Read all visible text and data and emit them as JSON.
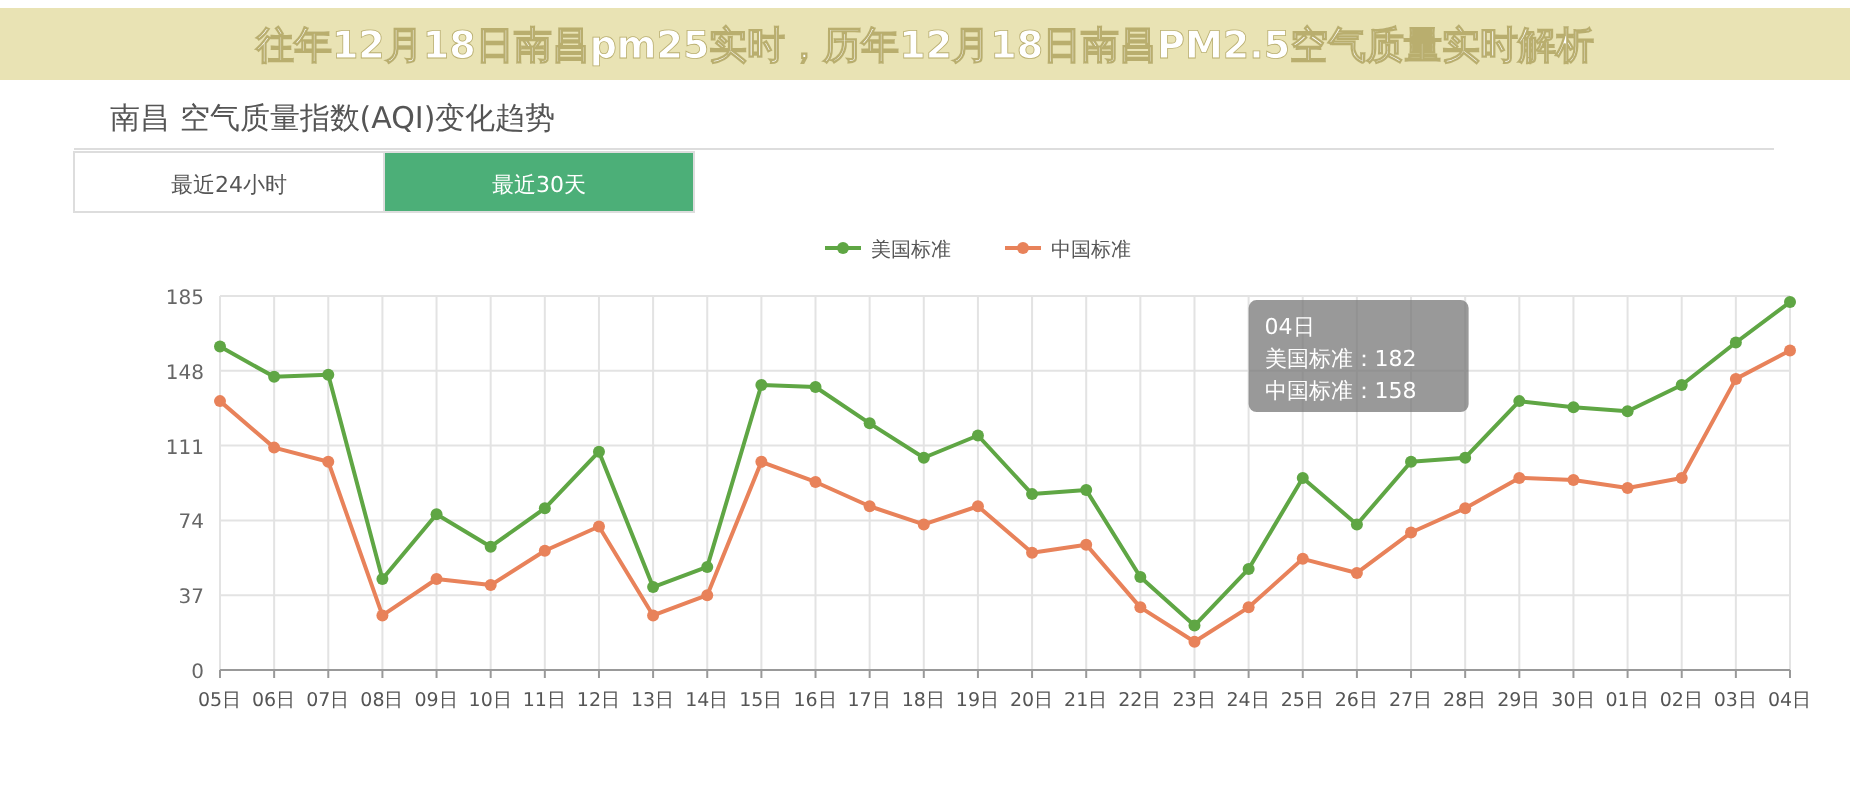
{
  "chart_data": {
    "type": "line",
    "title": "往年12月18日南昌pm25实时，历年12月18日南昌PM2.5空气质量实时解析",
    "subtitle": "南昌 空气质量指数(AQI)变化趋势",
    "annotations": [
      "最近24小时",
      "最近30天",
      "04日",
      "美国标准：182",
      "中国标准：158"
    ],
    "categories": [
      "05日",
      "06日",
      "07日",
      "08日",
      "09日",
      "10日",
      "11日",
      "12日",
      "13日",
      "14日",
      "15日",
      "16日",
      "17日",
      "18日",
      "19日",
      "20日",
      "21日",
      "22日",
      "23日",
      "24日",
      "25日",
      "26日",
      "27日",
      "28日",
      "29日",
      "30日",
      "01日",
      "02日",
      "03日",
      "04日"
    ],
    "series": [
      {
        "name": "美国标准",
        "color": "#5fa644",
        "values": [
          160,
          145,
          146,
          45,
          77,
          61,
          80,
          108,
          41,
          51,
          141,
          140,
          122,
          105,
          116,
          87,
          89,
          46,
          22,
          50,
          95,
          72,
          103,
          105,
          133,
          130,
          128,
          141,
          162,
          182
        ]
      },
      {
        "name": "中国标准",
        "color": "#e8825a",
        "values": [
          133,
          110,
          103,
          27,
          45,
          42,
          59,
          71,
          27,
          37,
          103,
          93,
          81,
          72,
          81,
          58,
          62,
          31,
          14,
          31,
          55,
          48,
          68,
          80,
          95,
          94,
          90,
          95,
          144,
          158
        ]
      }
    ],
    "ylim": [
      0,
      185
    ],
    "yticks": [
      0,
      37,
      74,
      111,
      148,
      185
    ],
    "grid": true,
    "legend": "top",
    "marker": "circle",
    "line_style": "solid"
  }
}
